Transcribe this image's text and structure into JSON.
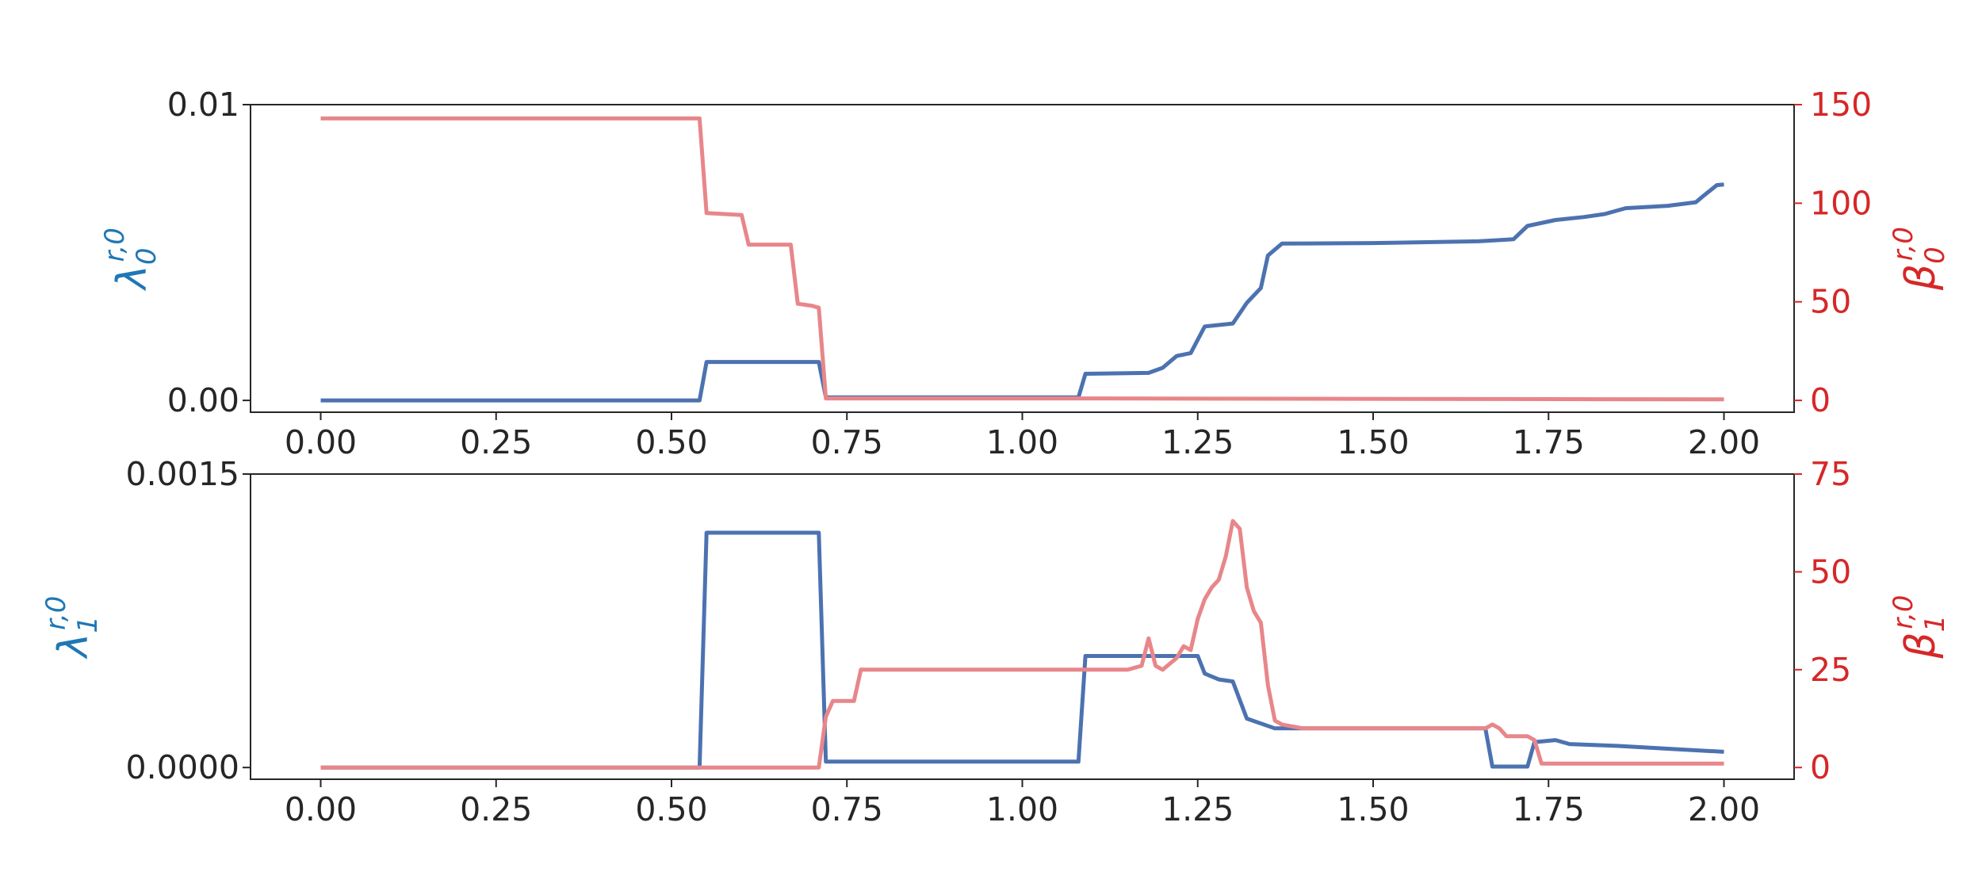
{
  "colors": {
    "left_series": "#4C72B0",
    "right_series": "#E8868A",
    "left_axis_label": "#1F77B4",
    "right_axis_label": "#D62728",
    "tick_text": "#262626"
  },
  "chart_data": [
    {
      "type": "line",
      "panel": "top",
      "x_ticks": [
        "0.00",
        "0.25",
        "0.50",
        "0.75",
        "1.00",
        "1.25",
        "1.50",
        "1.75",
        "2.00"
      ],
      "y_left_ticks": [
        "0.00",
        "0.01"
      ],
      "y_right_ticks": [
        "0",
        "50",
        "100",
        "150"
      ],
      "ylabel_left": {
        "base": "λ",
        "sub": "0",
        "sup": "r,0"
      },
      "ylabel_right": {
        "base": "β",
        "sub": "0",
        "sup": "r,0"
      },
      "xlim": [
        -0.1,
        2.1
      ],
      "ylim_left": [
        -0.0004,
        0.01
      ],
      "ylim_right": [
        -6,
        150
      ],
      "grid": false,
      "series": [
        {
          "axis": "left",
          "points": [
            [
              0.0,
              0.0
            ],
            [
              0.54,
              0.0
            ],
            [
              0.55,
              0.0013
            ],
            [
              0.71,
              0.0013
            ],
            [
              0.72,
              0.0001
            ],
            [
              1.08,
              0.0001
            ],
            [
              1.09,
              0.0009
            ],
            [
              1.18,
              0.00093
            ],
            [
              1.2,
              0.0011
            ],
            [
              1.22,
              0.0015
            ],
            [
              1.24,
              0.0016
            ],
            [
              1.26,
              0.0025
            ],
            [
              1.3,
              0.0026
            ],
            [
              1.32,
              0.0033
            ],
            [
              1.34,
              0.0038
            ],
            [
              1.35,
              0.0049
            ],
            [
              1.37,
              0.0053
            ],
            [
              1.5,
              0.00532
            ],
            [
              1.65,
              0.00538
            ],
            [
              1.7,
              0.00545
            ],
            [
              1.72,
              0.0059
            ],
            [
              1.76,
              0.0061
            ],
            [
              1.8,
              0.0062
            ],
            [
              1.83,
              0.0063
            ],
            [
              1.86,
              0.0065
            ],
            [
              1.92,
              0.00658
            ],
            [
              1.96,
              0.0067
            ],
            [
              1.97,
              0.0069
            ],
            [
              1.99,
              0.00728
            ],
            [
              2.0,
              0.0073
            ]
          ]
        },
        {
          "axis": "right",
          "points": [
            [
              0.0,
              143
            ],
            [
              0.54,
              143
            ],
            [
              0.55,
              95
            ],
            [
              0.6,
              94
            ],
            [
              0.61,
              79
            ],
            [
              0.67,
              79
            ],
            [
              0.68,
              49
            ],
            [
              0.7,
              48
            ],
            [
              0.71,
              47
            ],
            [
              0.72,
              1
            ],
            [
              1.08,
              1
            ],
            [
              2.0,
              0.5
            ]
          ]
        }
      ]
    },
    {
      "type": "line",
      "panel": "bottom",
      "x_ticks": [
        "0.00",
        "0.25",
        "0.50",
        "0.75",
        "1.00",
        "1.25",
        "1.50",
        "1.75",
        "2.00"
      ],
      "y_left_ticks": [
        "0.0000",
        "0.0015"
      ],
      "y_right_ticks": [
        "0",
        "25",
        "50",
        "75"
      ],
      "ylabel_left": {
        "base": "λ",
        "sub": "1",
        "sup": "r,0"
      },
      "ylabel_right": {
        "base": "β",
        "sub": "1",
        "sup": "r,0"
      },
      "xlim": [
        -0.1,
        2.1
      ],
      "ylim_left": [
        -6e-05,
        0.0015
      ],
      "ylim_right": [
        -3,
        75
      ],
      "grid": false,
      "series": [
        {
          "axis": "left",
          "points": [
            [
              0.0,
              0.0
            ],
            [
              0.54,
              0.0
            ],
            [
              0.55,
              0.0012
            ],
            [
              0.71,
              0.0012
            ],
            [
              0.72,
              3e-05
            ],
            [
              1.08,
              3e-05
            ],
            [
              1.09,
              0.00057
            ],
            [
              1.25,
              0.00057
            ],
            [
              1.26,
              0.00048
            ],
            [
              1.28,
              0.00045
            ],
            [
              1.3,
              0.00044
            ],
            [
              1.32,
              0.00025
            ],
            [
              1.36,
              0.0002
            ],
            [
              1.5,
              0.0002
            ],
            [
              1.66,
              0.0002
            ],
            [
              1.67,
              5e-06
            ],
            [
              1.72,
              5e-06
            ],
            [
              1.73,
              0.00013
            ],
            [
              1.76,
              0.00014
            ],
            [
              1.78,
              0.00012
            ],
            [
              1.85,
              0.00011
            ],
            [
              1.9,
              0.0001
            ],
            [
              1.95,
              9e-05
            ],
            [
              2.0,
              8e-05
            ]
          ]
        },
        {
          "axis": "right",
          "points": [
            [
              0.0,
              0
            ],
            [
              0.71,
              0
            ],
            [
              0.72,
              13
            ],
            [
              0.73,
              17
            ],
            [
              0.76,
              17
            ],
            [
              0.77,
              25
            ],
            [
              1.15,
              25
            ],
            [
              1.17,
              26
            ],
            [
              1.18,
              33
            ],
            [
              1.19,
              26
            ],
            [
              1.2,
              25
            ],
            [
              1.22,
              28
            ],
            [
              1.23,
              31
            ],
            [
              1.24,
              30
            ],
            [
              1.25,
              38
            ],
            [
              1.26,
              43
            ],
            [
              1.27,
              46
            ],
            [
              1.28,
              48
            ],
            [
              1.29,
              54
            ],
            [
              1.3,
              63
            ],
            [
              1.31,
              61
            ],
            [
              1.32,
              46
            ],
            [
              1.33,
              40
            ],
            [
              1.34,
              37
            ],
            [
              1.35,
              21
            ],
            [
              1.36,
              12
            ],
            [
              1.37,
              11
            ],
            [
              1.4,
              10
            ],
            [
              1.66,
              10
            ],
            [
              1.67,
              11
            ],
            [
              1.68,
              10
            ],
            [
              1.69,
              8
            ],
            [
              1.72,
              8
            ],
            [
              1.73,
              7
            ],
            [
              1.74,
              1
            ],
            [
              2.0,
              1
            ]
          ]
        }
      ]
    }
  ]
}
